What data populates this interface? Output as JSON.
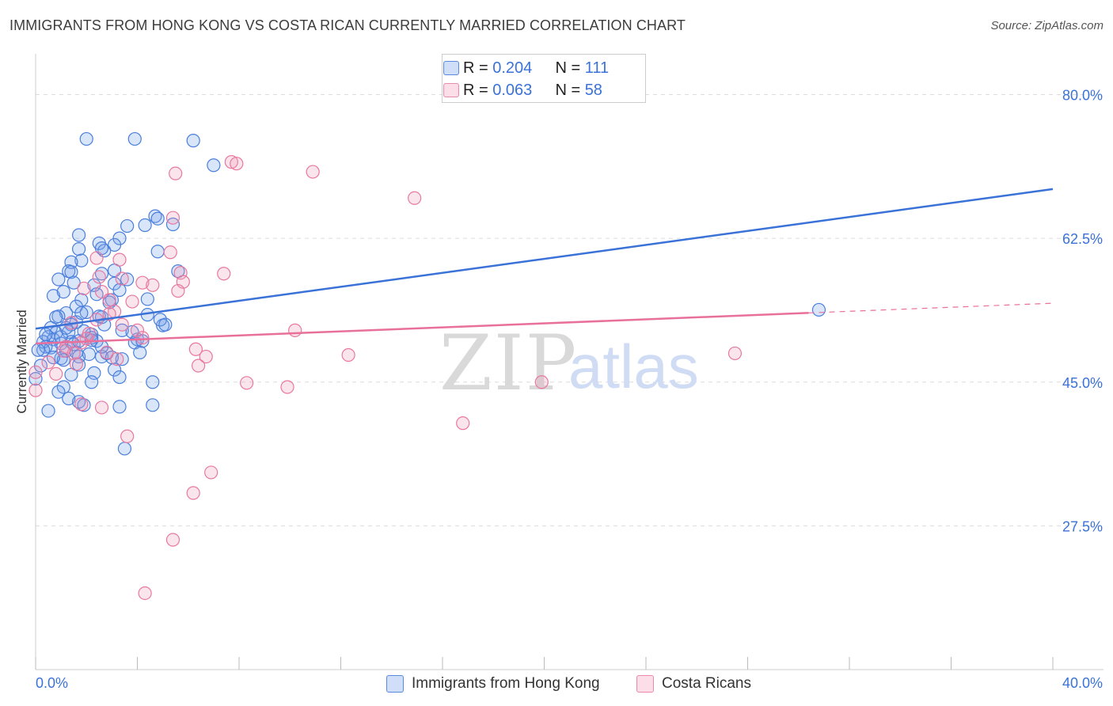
{
  "title": "IMMIGRANTS FROM HONG KONG VS COSTA RICAN CURRENTLY MARRIED CORRELATION CHART",
  "source": "Source: ZipAtlas.com",
  "watermark": {
    "zip": "ZIP",
    "atlas": "atlas"
  },
  "legend": {
    "r_label": "R =",
    "n_label": "N =",
    "series1": {
      "r": "0.204",
      "n": "111"
    },
    "series2": {
      "r": "0.063",
      "n": "58"
    }
  },
  "colors": {
    "blue": "#3a72d8",
    "blue_fill": "rgba(120,160,235,0.28)",
    "blue_stroke": "#4a7fdc",
    "pink": "#e8709a",
    "pink_fill": "rgba(240,150,180,0.25)",
    "pink_stroke": "#e8789f",
    "axis_text": "#3a72d8",
    "grid": "#dddddd"
  },
  "chart_data": {
    "type": "scatter",
    "title": "IMMIGRANTS FROM HONG KONG VS COSTA RICAN CURRENTLY MARRIED CORRELATION CHART",
    "xlabel": "",
    "ylabel": "Currently Married",
    "xlim": [
      0,
      40
    ],
    "ylim": [
      10,
      84
    ],
    "x_tick_labels": [
      "0.0%",
      "40.0%"
    ],
    "y_ticks": [
      27.5,
      45.0,
      62.5,
      80.0
    ],
    "y_tick_labels": [
      "27.5%",
      "45.0%",
      "62.5%",
      "80.0%"
    ],
    "x_minor_ticks": [
      0,
      4,
      8,
      12,
      16,
      20,
      24,
      28,
      32,
      36,
      40
    ],
    "grid": true,
    "series": [
      {
        "name": "Immigrants from Hong Kong",
        "color": "#4a7fdc",
        "trend": {
          "x": [
            0,
            40
          ],
          "y": [
            51.5,
            68.5
          ],
          "dashed_from": null
        },
        "points": [
          [
            2.0,
            74.6
          ],
          [
            3.9,
            74.6
          ],
          [
            6.2,
            74.4
          ],
          [
            7.0,
            71.4
          ],
          [
            4.7,
            65.2
          ],
          [
            4.8,
            64.9
          ],
          [
            4.3,
            64.1
          ],
          [
            5.4,
            64.2
          ],
          [
            3.6,
            64.0
          ],
          [
            1.7,
            62.9
          ],
          [
            3.3,
            62.5
          ],
          [
            2.5,
            61.9
          ],
          [
            3.1,
            61.7
          ],
          [
            1.7,
            61.2
          ],
          [
            2.7,
            61.0
          ],
          [
            4.8,
            60.9
          ],
          [
            2.6,
            61.3
          ],
          [
            1.8,
            59.8
          ],
          [
            1.4,
            59.6
          ],
          [
            1.3,
            58.5
          ],
          [
            1.4,
            58.4
          ],
          [
            3.1,
            58.6
          ],
          [
            2.6,
            58.2
          ],
          [
            5.6,
            58.5
          ],
          [
            0.9,
            57.5
          ],
          [
            1.5,
            57.1
          ],
          [
            3.1,
            57.0
          ],
          [
            2.3,
            56.8
          ],
          [
            3.6,
            57.5
          ],
          [
            3.3,
            56.2
          ],
          [
            2.4,
            55.7
          ],
          [
            0.7,
            55.5
          ],
          [
            1.8,
            55.0
          ],
          [
            3.0,
            55.0
          ],
          [
            1.6,
            54.2
          ],
          [
            4.4,
            55.1
          ],
          [
            2.0,
            53.5
          ],
          [
            1.2,
            53.4
          ],
          [
            0.9,
            53.0
          ],
          [
            2.6,
            52.9
          ],
          [
            1.6,
            52.3
          ],
          [
            1.4,
            52.0
          ],
          [
            5.0,
            51.9
          ],
          [
            0.6,
            51.6
          ],
          [
            1.3,
            51.1
          ],
          [
            0.8,
            51.0
          ],
          [
            2.2,
            50.8
          ],
          [
            3.4,
            51.3
          ],
          [
            2.4,
            50.0
          ],
          [
            0.5,
            50.5
          ],
          [
            0.3,
            49.9
          ],
          [
            0.7,
            50.2
          ],
          [
            1.0,
            49.7
          ],
          [
            1.4,
            49.9
          ],
          [
            2.2,
            50.4
          ],
          [
            0.4,
            49.3
          ],
          [
            2.2,
            50.1
          ],
          [
            4.0,
            50.2
          ],
          [
            3.9,
            49.8
          ],
          [
            1.7,
            50.0
          ],
          [
            0.6,
            49.2
          ],
          [
            0.3,
            48.9
          ],
          [
            1.2,
            48.8
          ],
          [
            1.6,
            48.6
          ],
          [
            1.7,
            48.1
          ],
          [
            2.1,
            48.4
          ],
          [
            1.0,
            47.9
          ],
          [
            2.6,
            48.1
          ],
          [
            2.8,
            48.5
          ],
          [
            4.1,
            48.6
          ],
          [
            1.1,
            47.7
          ],
          [
            3.4,
            47.8
          ],
          [
            1.7,
            47.1
          ],
          [
            2.3,
            46.1
          ],
          [
            1.4,
            45.9
          ],
          [
            3.1,
            46.5
          ],
          [
            3.3,
            45.6
          ],
          [
            4.6,
            45.0
          ],
          [
            0.0,
            45.4
          ],
          [
            2.2,
            45.0
          ],
          [
            1.1,
            44.4
          ],
          [
            0.9,
            43.8
          ],
          [
            1.3,
            43.0
          ],
          [
            3.3,
            42.0
          ],
          [
            4.6,
            42.2
          ],
          [
            1.7,
            42.6
          ],
          [
            0.5,
            41.5
          ],
          [
            1.9,
            42.2
          ],
          [
            3.5,
            36.9
          ],
          [
            0.1,
            48.9
          ],
          [
            30.8,
            53.8
          ],
          [
            0.4,
            50.8
          ],
          [
            0.8,
            52.9
          ],
          [
            1.8,
            53.4
          ],
          [
            2.5,
            53.0
          ],
          [
            4.2,
            50.0
          ],
          [
            4.9,
            52.6
          ],
          [
            3.8,
            51.1
          ],
          [
            2.9,
            54.7
          ],
          [
            1.1,
            56.0
          ],
          [
            0.7,
            48.0
          ],
          [
            2.6,
            49.3
          ],
          [
            3.0,
            48.0
          ],
          [
            1.5,
            49.6
          ],
          [
            0.2,
            47.0
          ],
          [
            1.0,
            50.5
          ],
          [
            1.9,
            51.2
          ],
          [
            2.7,
            52.0
          ],
          [
            4.4,
            53.2
          ],
          [
            5.1,
            52.0
          ],
          [
            1.2,
            51.6
          ]
        ]
      },
      {
        "name": "Costa Ricans",
        "color": "#e8789f",
        "trend": {
          "x": [
            0,
            40
          ],
          "y": [
            49.7,
            54.6
          ],
          "dashed_from": 30.4
        },
        "points": [
          [
            7.7,
            71.8
          ],
          [
            7.9,
            71.6
          ],
          [
            10.9,
            70.6
          ],
          [
            5.5,
            70.4
          ],
          [
            14.9,
            67.4
          ],
          [
            5.4,
            65.0
          ],
          [
            5.3,
            60.8
          ],
          [
            2.4,
            60.1
          ],
          [
            3.3,
            59.9
          ],
          [
            5.7,
            58.3
          ],
          [
            7.4,
            58.2
          ],
          [
            3.4,
            57.6
          ],
          [
            4.2,
            57.1
          ],
          [
            4.6,
            56.8
          ],
          [
            5.8,
            57.2
          ],
          [
            5.6,
            56.1
          ],
          [
            2.5,
            57.8
          ],
          [
            1.9,
            56.4
          ],
          [
            2.6,
            56.0
          ],
          [
            2.9,
            55.0
          ],
          [
            3.8,
            54.8
          ],
          [
            3.1,
            53.6
          ],
          [
            2.9,
            53.3
          ],
          [
            2.4,
            52.6
          ],
          [
            1.4,
            52.2
          ],
          [
            3.4,
            52.0
          ],
          [
            4.0,
            51.3
          ],
          [
            10.2,
            51.3
          ],
          [
            2.1,
            50.9
          ],
          [
            2.0,
            50.3
          ],
          [
            4.2,
            50.4
          ],
          [
            1.8,
            49.8
          ],
          [
            1.2,
            49.3
          ],
          [
            6.3,
            49.0
          ],
          [
            1.5,
            48.5
          ],
          [
            2.8,
            48.6
          ],
          [
            6.7,
            48.1
          ],
          [
            12.3,
            48.3
          ],
          [
            27.5,
            48.5
          ],
          [
            3.2,
            47.8
          ],
          [
            1.6,
            47.2
          ],
          [
            0.5,
            47.4
          ],
          [
            6.4,
            47.0
          ],
          [
            0.0,
            46.2
          ],
          [
            0.8,
            46.0
          ],
          [
            8.3,
            44.9
          ],
          [
            19.9,
            45.0
          ],
          [
            9.9,
            44.4
          ],
          [
            0.0,
            44.0
          ],
          [
            1.8,
            42.3
          ],
          [
            2.6,
            41.9
          ],
          [
            16.8,
            40.0
          ],
          [
            3.6,
            38.4
          ],
          [
            6.9,
            34.0
          ],
          [
            6.2,
            31.5
          ],
          [
            5.4,
            25.8
          ],
          [
            4.3,
            19.3
          ],
          [
            1.1,
            48.8
          ]
        ]
      }
    ]
  },
  "bottom_legend": {
    "series1": "Immigrants from Hong Kong",
    "series2": "Costa Ricans"
  },
  "y_axis_label": "Currently Married",
  "x_axis": {
    "min_label": "0.0%",
    "max_label": "40.0%"
  }
}
